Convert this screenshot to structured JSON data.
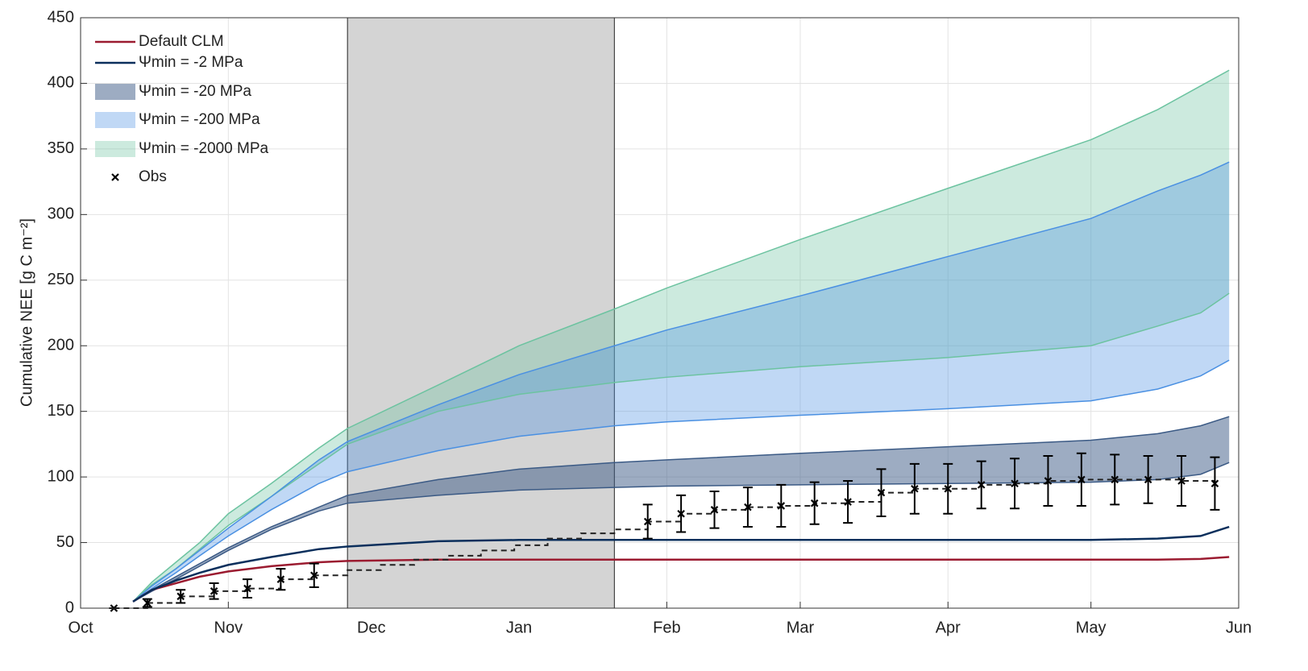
{
  "chart_data": {
    "type": "line",
    "ylabel": "Cumulative NEE [g C m⁻²]",
    "xlim": [
      0,
      243
    ],
    "xticks": [
      {
        "value": 0,
        "label": "Oct"
      },
      {
        "value": 31,
        "label": "Nov"
      },
      {
        "value": 61,
        "label": "Dec"
      },
      {
        "value": 92,
        "label": "Jan"
      },
      {
        "value": 123,
        "label": "Feb"
      },
      {
        "value": 151,
        "label": "Mar"
      },
      {
        "value": 182,
        "label": "Apr"
      },
      {
        "value": 212,
        "label": "May"
      },
      {
        "value": 243,
        "label": "Jun"
      }
    ],
    "ylim": [
      0,
      450
    ],
    "yticks": [
      0,
      50,
      100,
      150,
      200,
      250,
      300,
      350,
      400,
      450
    ],
    "grid": true,
    "legend": "upper left",
    "shaded_region": [
      56,
      112
    ],
    "x": [
      11,
      15,
      20,
      25,
      31,
      40,
      50,
      56,
      75,
      92,
      112,
      123,
      151,
      182,
      212,
      226,
      235,
      241
    ],
    "series": [
      {
        "name": "Default CLM",
        "color": "#9b1b30",
        "values": [
          5,
          14,
          19,
          24,
          28,
          32,
          35,
          36,
          37,
          37,
          37,
          37,
          37,
          37,
          37,
          37,
          37.5,
          39
        ]
      },
      {
        "name": "Ψmin = -2 MPa",
        "color": "#0b2f5c",
        "values": [
          5,
          14,
          21,
          27,
          33,
          39,
          45,
          47,
          51,
          52,
          52,
          52,
          52,
          52,
          52,
          53,
          55,
          62
        ]
      },
      {
        "name": "Ψmin = -20 MPa",
        "color": "#3b5a85",
        "lower": [
          5,
          13,
          22,
          32,
          44,
          60,
          74,
          80,
          86,
          90,
          92,
          93,
          94,
          95,
          96,
          98,
          102,
          111
        ],
        "upper": [
          5,
          14,
          24,
          34,
          46,
          62,
          77,
          86,
          98,
          106,
          111,
          113,
          118,
          123,
          128,
          133,
          139,
          146
        ]
      },
      {
        "name": "Ψmin = -200 MPa",
        "color": "#4a90e2",
        "lower": [
          5,
          15,
          27,
          40,
          55,
          75,
          95,
          104,
          120,
          131,
          139,
          142,
          147,
          152,
          158,
          167,
          177,
          189
        ],
        "upper": [
          5,
          17,
          30,
          44,
          61,
          85,
          113,
          127,
          155,
          178,
          200,
          212,
          238,
          268,
          297,
          318,
          330,
          340
        ]
      },
      {
        "name": "Ψmin = -2000 MPa",
        "color": "#6cc3a0",
        "lower": [
          5,
          18,
          30,
          45,
          63,
          85,
          110,
          125,
          150,
          163,
          172,
          176,
          184,
          191,
          200,
          215,
          225,
          240
        ],
        "upper": [
          5,
          20,
          35,
          50,
          72,
          95,
          122,
          137,
          170,
          200,
          228,
          244,
          281,
          320,
          357,
          380,
          398,
          410
        ]
      }
    ],
    "observations": {
      "name": "Obs",
      "color": "#000000",
      "x": [
        7,
        14,
        21,
        28,
        35,
        42,
        49,
        56,
        63,
        70,
        77,
        84,
        91,
        98,
        105,
        112,
        119,
        126,
        133,
        140,
        147,
        154,
        161,
        168,
        175,
        182,
        189,
        196,
        203,
        210,
        217,
        224,
        231,
        238
      ],
      "values": [
        0,
        4,
        9,
        13,
        15,
        22,
        25,
        29,
        33,
        37,
        40,
        44,
        48,
        53,
        57,
        60,
        66,
        72,
        75,
        77,
        78,
        80,
        81,
        88,
        91,
        91,
        94,
        95,
        97,
        98,
        98,
        98,
        97,
        95
      ],
      "errors": [
        0,
        3,
        5,
        6,
        7,
        8,
        9,
        null,
        null,
        null,
        null,
        null,
        null,
        null,
        null,
        null,
        13,
        14,
        14,
        15,
        16,
        16,
        16,
        18,
        19,
        19,
        18,
        19,
        19,
        20,
        19,
        18,
        19,
        20
      ]
    }
  }
}
